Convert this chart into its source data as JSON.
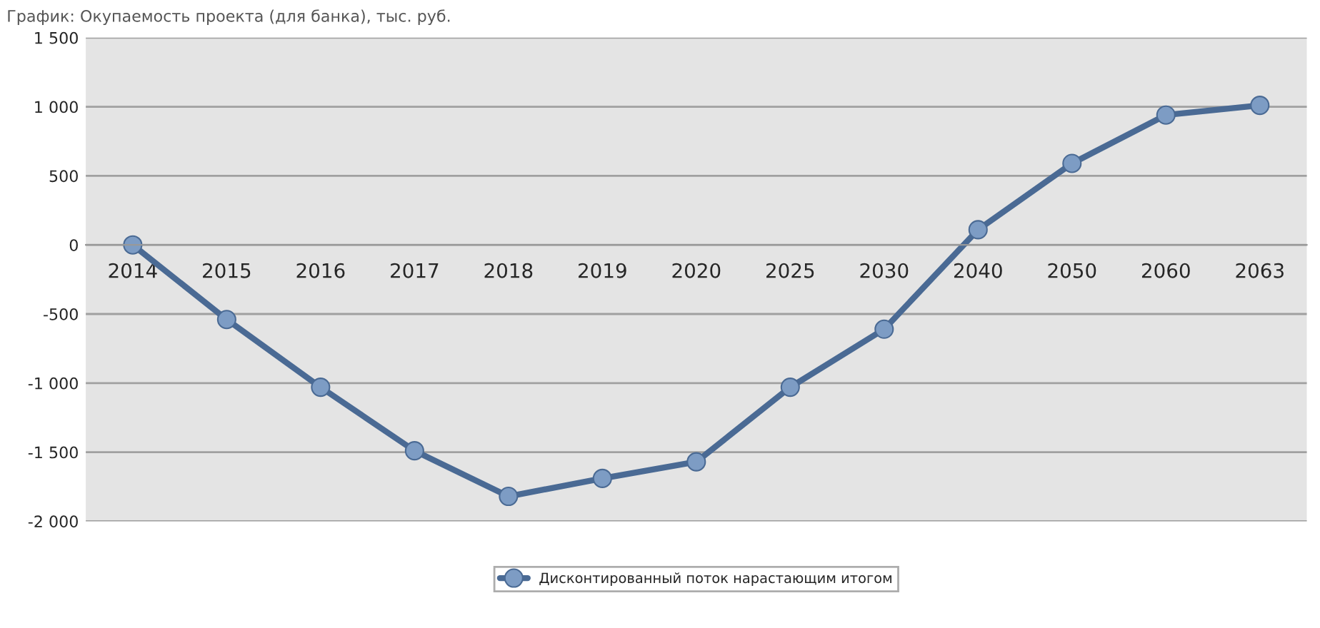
{
  "chart_data": {
    "type": "line",
    "title": "График: Окупаемость проекта (для банка), тыс. руб.",
    "categories": [
      "2014",
      "2015",
      "2016",
      "2017",
      "2018",
      "2019",
      "2020",
      "2025",
      "2030",
      "2040",
      "2050",
      "2060",
      "2063"
    ],
    "series": [
      {
        "name": "Дисконтированный поток нарастающим итогом",
        "color": "#4a6a94",
        "values": [
          0,
          -540,
          -1030,
          -1490,
          -1820,
          -1690,
          -1570,
          -1030,
          -610,
          110,
          590,
          940,
          1010
        ]
      }
    ],
    "ylim": [
      -2000,
      1500
    ],
    "yticks": [
      {
        "value": -2000,
        "label": "-2 000"
      },
      {
        "value": -1500,
        "label": "-1 500"
      },
      {
        "value": -1000,
        "label": "-1 000"
      },
      {
        "value": -500,
        "label": "-500"
      },
      0,
      500,
      {
        "value": 1000,
        "label": "1 000"
      },
      {
        "value": 1500,
        "label": "1 500"
      }
    ],
    "grid": "y",
    "legend": "bottom",
    "marker": "circle",
    "line_style": "solid"
  }
}
